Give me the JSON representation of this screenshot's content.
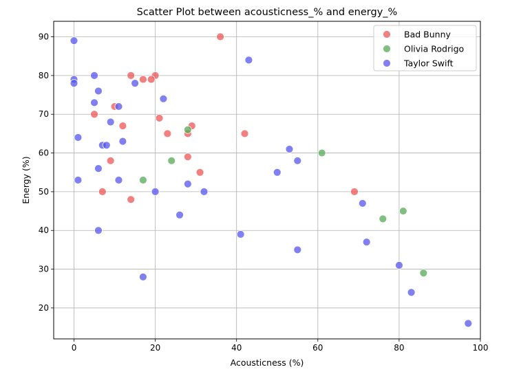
{
  "chart_data": {
    "type": "scatter",
    "title": "Scatter Plot between acousticness_% and energy_%",
    "xlabel": "Acousticness (%)",
    "ylabel": "Energy (%)",
    "xlim": [
      -5,
      100
    ],
    "ylim": [
      12,
      94
    ],
    "xticks": [
      0,
      20,
      40,
      60,
      80,
      100
    ],
    "yticks": [
      20,
      30,
      40,
      50,
      60,
      70,
      80,
      90
    ],
    "grid": true,
    "legend_position": "top-right",
    "series": [
      {
        "name": "Bad Bunny",
        "color": "#ee5555",
        "points": [
          [
            36,
            90
          ],
          [
            14,
            80
          ],
          [
            20,
            80
          ],
          [
            17,
            79
          ],
          [
            19,
            79
          ],
          [
            10,
            72
          ],
          [
            5,
            70
          ],
          [
            21,
            69
          ],
          [
            12,
            67
          ],
          [
            29,
            67
          ],
          [
            23,
            65
          ],
          [
            28,
            65
          ],
          [
            42,
            65
          ],
          [
            28,
            59
          ],
          [
            9,
            58
          ],
          [
            31,
            55
          ],
          [
            7,
            50
          ],
          [
            69,
            50
          ],
          [
            14,
            48
          ]
        ]
      },
      {
        "name": "Olivia Rodrigo",
        "color": "#55aa55",
        "points": [
          [
            28,
            66
          ],
          [
            61,
            60
          ],
          [
            24,
            58
          ],
          [
            17,
            53
          ],
          [
            81,
            45
          ],
          [
            76,
            43
          ],
          [
            86,
            29
          ]
        ]
      },
      {
        "name": "Taylor Swift",
        "color": "#5555ee",
        "points": [
          [
            0,
            89
          ],
          [
            43,
            84
          ],
          [
            5,
            80
          ],
          [
            0,
            79
          ],
          [
            0,
            78
          ],
          [
            15,
            78
          ],
          [
            6,
            76
          ],
          [
            22,
            74
          ],
          [
            5,
            73
          ],
          [
            11,
            72
          ],
          [
            9,
            68
          ],
          [
            1,
            64
          ],
          [
            12,
            63
          ],
          [
            7,
            62
          ],
          [
            8,
            62
          ],
          [
            53,
            61
          ],
          [
            55,
            58
          ],
          [
            6,
            56
          ],
          [
            50,
            55
          ],
          [
            1,
            53
          ],
          [
            11,
            53
          ],
          [
            28,
            52
          ],
          [
            20,
            50
          ],
          [
            32,
            50
          ],
          [
            71,
            47
          ],
          [
            26,
            44
          ],
          [
            6,
            40
          ],
          [
            41,
            39
          ],
          [
            72,
            37
          ],
          [
            55,
            35
          ],
          [
            80,
            31
          ],
          [
            17,
            28
          ],
          [
            83,
            24
          ],
          [
            97,
            16
          ]
        ]
      }
    ]
  }
}
